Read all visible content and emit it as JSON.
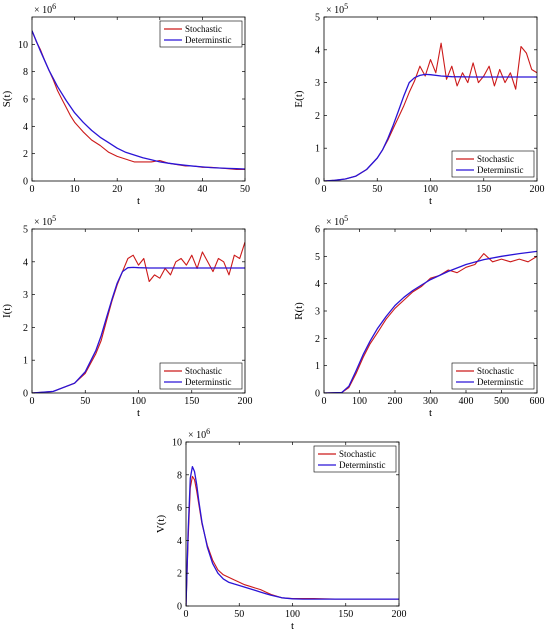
{
  "colors": {
    "stochastic": "#cc1a1a",
    "stochastic_shade": "#8a6a10",
    "deterministic": "#2a14d6",
    "axis": "#000000"
  },
  "chart_data": [
    {
      "id": "S",
      "type": "line",
      "ylabel": "S(t)",
      "xlabel": "t",
      "exponent": "× 10^6",
      "xlim": [
        0,
        50
      ],
      "ylim": [
        0,
        12
      ],
      "xticks": [
        0,
        10,
        20,
        30,
        40,
        50
      ],
      "yticks": [
        0,
        2,
        4,
        6,
        8,
        10
      ],
      "legend_position": "top-right",
      "series": [
        {
          "name": "Stochastic",
          "x": [
            0,
            1,
            2,
            3,
            4,
            5,
            6,
            7,
            8,
            9,
            10,
            12,
            14,
            16,
            18,
            20,
            22,
            24,
            26,
            28,
            30,
            32,
            34,
            36,
            38,
            40,
            42,
            44,
            46,
            48,
            50
          ],
          "y": [
            11.0,
            10.2,
            9.6,
            8.8,
            8.1,
            7.4,
            6.6,
            6.0,
            5.4,
            4.8,
            4.3,
            3.6,
            3.0,
            2.6,
            2.1,
            1.8,
            1.6,
            1.4,
            1.4,
            1.4,
            1.5,
            1.3,
            1.2,
            1.1,
            1.1,
            1.0,
            1.0,
            0.95,
            0.9,
            0.85,
            0.85
          ]
        },
        {
          "name": "Determinstic",
          "x": [
            0,
            2,
            4,
            6,
            8,
            10,
            12,
            14,
            16,
            18,
            20,
            22,
            24,
            26,
            28,
            30,
            32,
            34,
            36,
            38,
            40,
            42,
            44,
            46,
            48,
            50
          ],
          "y": [
            11.0,
            9.5,
            8.1,
            6.9,
            5.9,
            5.0,
            4.3,
            3.7,
            3.2,
            2.8,
            2.4,
            2.1,
            1.9,
            1.7,
            1.55,
            1.4,
            1.3,
            1.22,
            1.15,
            1.08,
            1.03,
            0.98,
            0.95,
            0.92,
            0.9,
            0.88
          ]
        }
      ]
    },
    {
      "id": "E",
      "type": "line",
      "ylabel": "E(t)",
      "xlabel": "t",
      "exponent": "× 10^5",
      "xlim": [
        0,
        200
      ],
      "ylim": [
        0,
        5
      ],
      "xticks": [
        0,
        50,
        100,
        150,
        200
      ],
      "yticks": [
        0,
        1,
        2,
        3,
        4,
        5
      ],
      "legend_position": "bottom-right",
      "series": [
        {
          "name": "Stochastic",
          "x": [
            0,
            10,
            20,
            30,
            40,
            50,
            55,
            60,
            65,
            70,
            75,
            80,
            85,
            90,
            95,
            100,
            105,
            110,
            115,
            120,
            125,
            130,
            135,
            140,
            145,
            150,
            155,
            160,
            165,
            170,
            175,
            180,
            185,
            190,
            195,
            200
          ],
          "y": [
            0,
            0.02,
            0.06,
            0.15,
            0.35,
            0.7,
            0.95,
            1.25,
            1.6,
            1.95,
            2.3,
            2.7,
            3.05,
            3.5,
            3.2,
            3.7,
            3.3,
            4.2,
            3.1,
            3.5,
            2.9,
            3.3,
            3.0,
            3.6,
            3.0,
            3.2,
            3.5,
            2.9,
            3.4,
            3.0,
            3.3,
            2.8,
            4.1,
            3.9,
            3.4,
            3.3
          ]
        },
        {
          "name": "Determinstic",
          "x": [
            0,
            10,
            20,
            30,
            40,
            50,
            55,
            60,
            65,
            70,
            75,
            80,
            85,
            90,
            95,
            100,
            110,
            120,
            140,
            160,
            180,
            200
          ],
          "y": [
            0,
            0.02,
            0.06,
            0.15,
            0.35,
            0.7,
            0.95,
            1.3,
            1.7,
            2.15,
            2.6,
            3.0,
            3.15,
            3.22,
            3.25,
            3.24,
            3.2,
            3.18,
            3.17,
            3.17,
            3.17,
            3.17
          ]
        }
      ]
    },
    {
      "id": "I",
      "type": "line",
      "ylabel": "I(t)",
      "xlabel": "t",
      "exponent": "× 10^5",
      "xlim": [
        0,
        200
      ],
      "ylim": [
        0,
        5
      ],
      "xticks": [
        0,
        50,
        100,
        150,
        200
      ],
      "yticks": [
        0,
        1,
        2,
        3,
        4,
        5
      ],
      "legend_position": "bottom-right",
      "series": [
        {
          "name": "Stochastic",
          "x": [
            0,
            20,
            40,
            50,
            60,
            65,
            70,
            75,
            80,
            85,
            90,
            95,
            100,
            105,
            110,
            115,
            120,
            125,
            130,
            135,
            140,
            145,
            150,
            155,
            160,
            165,
            170,
            175,
            180,
            185,
            190,
            195,
            200
          ],
          "y": [
            0,
            0.05,
            0.3,
            0.6,
            1.2,
            1.6,
            2.2,
            2.8,
            3.3,
            3.7,
            4.1,
            4.2,
            3.9,
            4.1,
            3.4,
            3.6,
            3.5,
            3.8,
            3.6,
            4.0,
            4.1,
            3.9,
            4.2,
            3.8,
            4.3,
            4.0,
            3.7,
            4.1,
            4.0,
            3.6,
            4.2,
            4.1,
            4.6
          ]
        },
        {
          "name": "Determinstic",
          "x": [
            0,
            20,
            40,
            50,
            60,
            65,
            70,
            75,
            80,
            85,
            90,
            95,
            100,
            110,
            120,
            140,
            160,
            180,
            200
          ],
          "y": [
            0,
            0.05,
            0.3,
            0.65,
            1.3,
            1.75,
            2.3,
            2.85,
            3.35,
            3.7,
            3.82,
            3.83,
            3.82,
            3.81,
            3.81,
            3.81,
            3.81,
            3.81,
            3.81
          ]
        }
      ]
    },
    {
      "id": "R",
      "type": "line",
      "ylabel": "R(t)",
      "xlabel": "t",
      "exponent": "× 10^5",
      "xlim": [
        0,
        600
      ],
      "ylim": [
        0,
        6
      ],
      "xticks": [
        0,
        100,
        200,
        300,
        400,
        500,
        600
      ],
      "yticks": [
        0,
        1,
        2,
        3,
        4,
        5,
        6
      ],
      "legend_position": "bottom-right",
      "series": [
        {
          "name": "Stochastic",
          "x": [
            0,
            50,
            70,
            90,
            110,
            130,
            150,
            175,
            200,
            225,
            250,
            275,
            300,
            325,
            350,
            375,
            400,
            425,
            450,
            475,
            500,
            525,
            550,
            575,
            600
          ],
          "y": [
            0,
            0.02,
            0.2,
            0.7,
            1.3,
            1.8,
            2.2,
            2.7,
            3.1,
            3.4,
            3.7,
            3.9,
            4.2,
            4.3,
            4.5,
            4.4,
            4.6,
            4.7,
            5.1,
            4.8,
            4.9,
            4.8,
            4.9,
            4.8,
            5.0
          ]
        },
        {
          "name": "Determinstic",
          "x": [
            0,
            50,
            70,
            90,
            110,
            130,
            150,
            175,
            200,
            225,
            250,
            275,
            300,
            350,
            400,
            450,
            500,
            550,
            600
          ],
          "y": [
            0,
            0.02,
            0.25,
            0.8,
            1.4,
            1.9,
            2.35,
            2.8,
            3.2,
            3.5,
            3.75,
            3.95,
            4.15,
            4.45,
            4.7,
            4.88,
            5.0,
            5.1,
            5.18
          ]
        }
      ]
    },
    {
      "id": "V",
      "type": "line",
      "ylabel": "V(t)",
      "xlabel": "t",
      "exponent": "× 10^6",
      "xlim": [
        0,
        200
      ],
      "ylim": [
        0,
        10
      ],
      "xticks": [
        0,
        50,
        100,
        150,
        200
      ],
      "yticks": [
        0,
        2,
        4,
        6,
        8,
        10
      ],
      "legend_position": "top-right",
      "series": [
        {
          "name": "Stochastic",
          "x": [
            0,
            2,
            4,
            6,
            8,
            10,
            12,
            15,
            20,
            25,
            30,
            35,
            40,
            45,
            50,
            55,
            60,
            65,
            70,
            75,
            80,
            90,
            100,
            110,
            120,
            140,
            160,
            180,
            200
          ],
          "y": [
            0,
            4.0,
            7.2,
            7.9,
            7.7,
            7.0,
            6.2,
            5.0,
            3.7,
            2.8,
            2.2,
            1.9,
            1.75,
            1.6,
            1.45,
            1.3,
            1.2,
            1.1,
            1.0,
            0.85,
            0.7,
            0.5,
            0.45,
            0.45,
            0.45,
            0.42,
            0.42,
            0.42,
            0.42
          ]
        },
        {
          "name": "Determinstic",
          "x": [
            0,
            2,
            4,
            6,
            8,
            10,
            12,
            15,
            20,
            25,
            30,
            35,
            40,
            45,
            50,
            55,
            60,
            65,
            70,
            75,
            80,
            90,
            100,
            110,
            120,
            140,
            160,
            180,
            200
          ],
          "y": [
            0,
            4.5,
            7.8,
            8.5,
            8.2,
            7.4,
            6.4,
            5.1,
            3.6,
            2.6,
            2.0,
            1.65,
            1.45,
            1.35,
            1.25,
            1.15,
            1.05,
            0.95,
            0.85,
            0.75,
            0.65,
            0.5,
            0.44,
            0.42,
            0.42,
            0.42,
            0.42,
            0.42,
            0.42
          ]
        }
      ]
    }
  ]
}
